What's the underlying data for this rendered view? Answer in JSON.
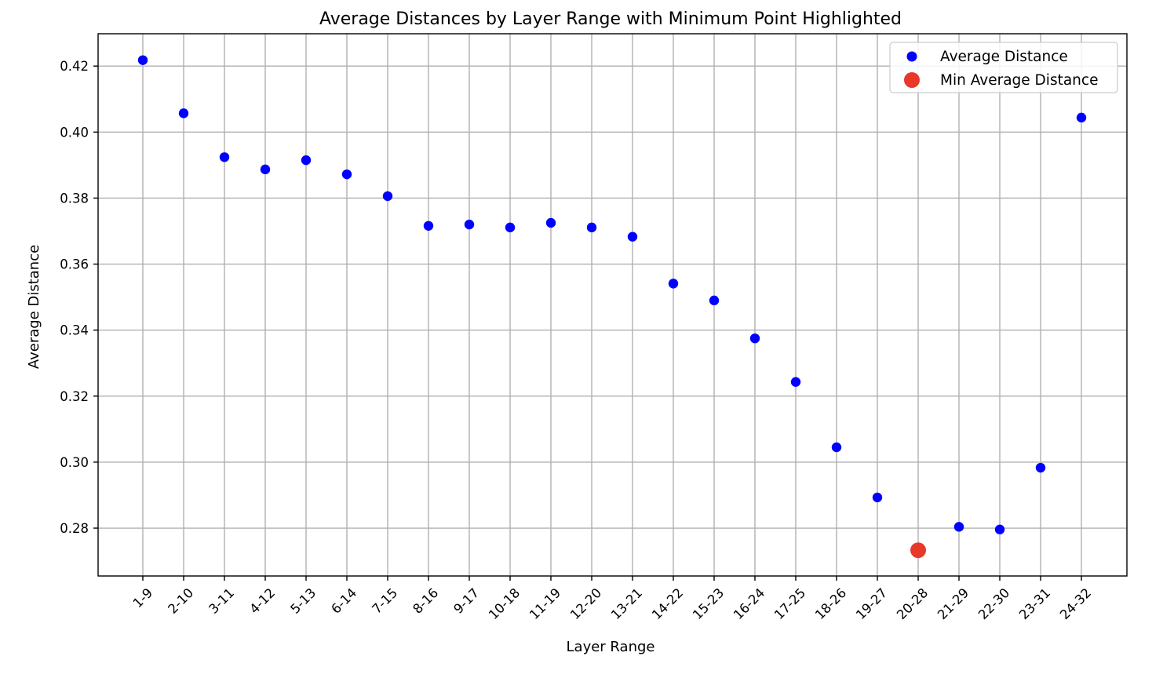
{
  "chart_data": {
    "type": "scatter",
    "title": "Average Distances by Layer Range with Minimum Point Highlighted",
    "xlabel": "Layer Range",
    "ylabel": "Average Distance",
    "categories": [
      "1-9",
      "2-10",
      "3-11",
      "4-12",
      "5-13",
      "6-14",
      "7-15",
      "8-16",
      "9-17",
      "10-18",
      "11-19",
      "12-20",
      "13-21",
      "14-22",
      "15-23",
      "16-24",
      "17-25",
      "18-26",
      "19-27",
      "20-28",
      "21-29",
      "22-30",
      "23-31",
      "24-32"
    ],
    "series": [
      {
        "name": "Average Distance",
        "color": "#0000ff",
        "values": [
          0.4218,
          0.4057,
          0.3924,
          0.3887,
          0.3915,
          0.3872,
          0.3806,
          0.3716,
          0.372,
          0.3711,
          0.3725,
          0.3711,
          0.3683,
          0.3541,
          0.349,
          0.3375,
          0.3243,
          0.3045,
          0.2893,
          null,
          0.2804,
          0.2796,
          0.2983,
          0.4044
        ]
      },
      {
        "name": "Min Average Distance",
        "color": "#e8382a",
        "category": "20-28",
        "value": 0.2733
      }
    ],
    "yticks": [
      "0.28",
      "0.30",
      "0.32",
      "0.34",
      "0.36",
      "0.38",
      "0.40",
      "0.42"
    ],
    "ylim": [
      0.2655,
      0.4298
    ],
    "grid": true,
    "legend": "top-right"
  }
}
